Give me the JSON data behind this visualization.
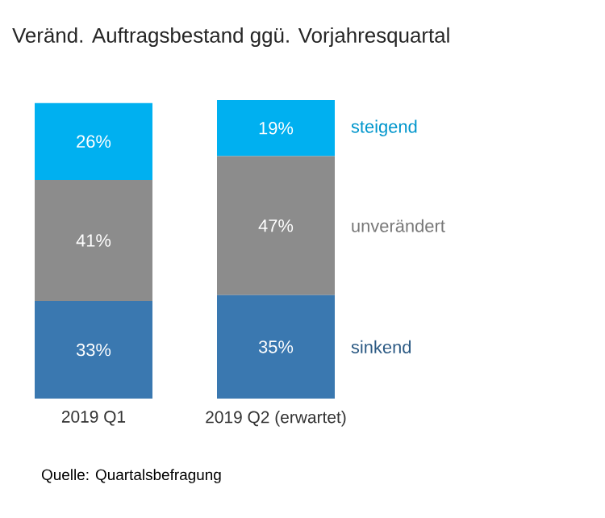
{
  "chart_data": {
    "type": "bar",
    "stacked": true,
    "title": "Veränd. Auftragsbestand ggü. Vorjahresquartal",
    "categories": [
      "2019 Q1",
      "2019 Q2 (erwartet)"
    ],
    "legend": "right",
    "series": [
      {
        "name": "sinkend",
        "color": "#3a78b0",
        "values": [
          33,
          35
        ],
        "value_labels": [
          "33%",
          "35%"
        ]
      },
      {
        "name": "unverändert",
        "color": "#8c8c8c",
        "values": [
          41,
          47
        ],
        "value_labels": [
          "41%",
          "47%"
        ]
      },
      {
        "name": "steigend",
        "color": "#00b0f0",
        "values": [
          26,
          19
        ],
        "value_labels": [
          "26%",
          "19%"
        ]
      }
    ],
    "annotations": [
      "Quelle: Quartalsbefragung"
    ]
  }
}
